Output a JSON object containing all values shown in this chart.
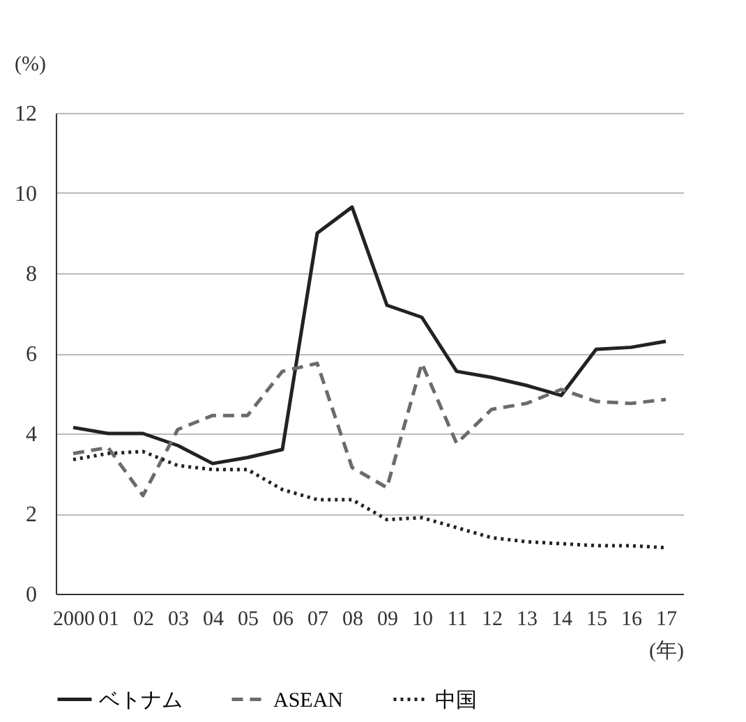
{
  "chart_data": {
    "type": "line",
    "ylabel": "(%)",
    "xlabel": "(年)",
    "categories": [
      "2000",
      "01",
      "02",
      "03",
      "04",
      "05",
      "06",
      "07",
      "08",
      "09",
      "10",
      "11",
      "12",
      "13",
      "14",
      "15",
      "16",
      "17"
    ],
    "series": [
      {
        "name": "ベトナム",
        "color": "#222222",
        "line_style": "solid",
        "values": [
          4.15,
          4.0,
          4.0,
          3.7,
          3.25,
          3.4,
          3.6,
          9.0,
          9.65,
          7.2,
          6.9,
          5.55,
          5.4,
          5.2,
          4.95,
          6.1,
          6.15,
          6.3
        ]
      },
      {
        "name": "ASEAN",
        "color": "#6b6b6b",
        "line_style": "dashed",
        "values": [
          3.5,
          3.65,
          2.45,
          4.1,
          4.45,
          4.45,
          5.55,
          5.75,
          3.15,
          2.65,
          5.75,
          3.75,
          4.6,
          4.75,
          5.1,
          4.8,
          4.75,
          4.85
        ]
      },
      {
        "name": "中国",
        "color": "#222222",
        "line_style": "dotted",
        "values": [
          3.35,
          3.5,
          3.55,
          3.2,
          3.1,
          3.1,
          2.6,
          2.35,
          2.35,
          1.85,
          1.9,
          1.65,
          1.4,
          1.3,
          1.25,
          1.2,
          1.2,
          1.15
        ]
      }
    ],
    "ylim": [
      0,
      12
    ],
    "yticks": [
      0,
      2,
      4,
      6,
      8,
      10,
      12
    ],
    "grid": "y",
    "legend": "bottom",
    "marker": "none"
  }
}
